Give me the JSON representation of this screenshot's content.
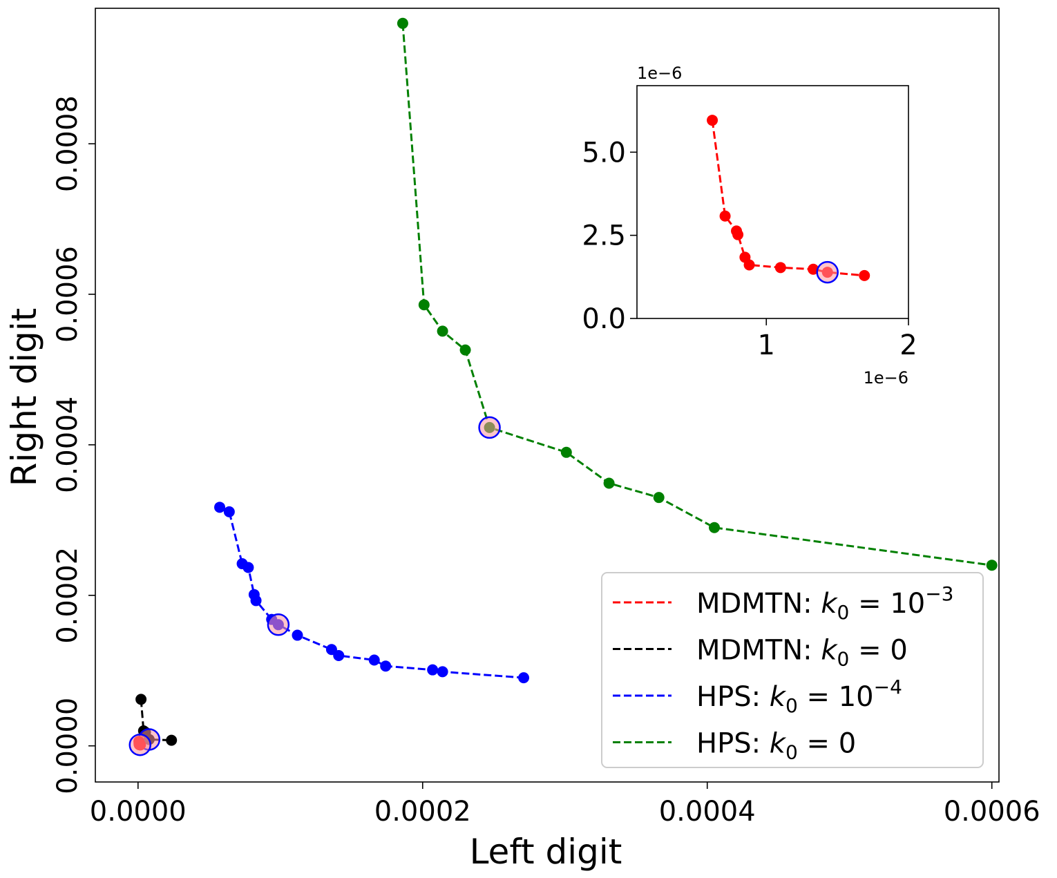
{
  "chart_data": {
    "type": "line",
    "xlabel": "Left digit",
    "ylabel": "Right digit",
    "xlim": [
      -3e-05,
      0.000605
    ],
    "ylim": [
      -4.8e-05,
      0.00098
    ],
    "xticks": [
      {
        "v": 0.0,
        "label": "0.0000"
      },
      {
        "v": 0.0002,
        "label": "0.0002"
      },
      {
        "v": 0.0004,
        "label": "0.0004"
      },
      {
        "v": 0.0006,
        "label": "0.0006"
      }
    ],
    "yticks": [
      {
        "v": 0.0,
        "label": "0.0000"
      },
      {
        "v": 0.0002,
        "label": "0.0002"
      },
      {
        "v": 0.0004,
        "label": "0.0004"
      },
      {
        "v": 0.0006,
        "label": "0.0006"
      },
      {
        "v": 0.0008,
        "label": "0.0008"
      }
    ],
    "series": [
      {
        "name": "HPS: k0 = 0",
        "color": "#008000",
        "x": [
          0.000186,
          0.000201,
          0.000214,
          0.00023,
          0.000247,
          0.000301,
          0.000331,
          0.000366,
          0.000405,
          0.0006
        ],
        "y": [
          0.00096,
          0.000586,
          0.000551,
          0.000526,
          0.000423,
          0.00039,
          0.000349,
          0.00033,
          0.00029,
          0.00024
        ],
        "highlight_index": 4
      },
      {
        "name": "HPS: k0 = 10^-4",
        "color": "#0000ff",
        "x": [
          5.74e-05,
          6.41e-05,
          7.32e-05,
          7.75e-05,
          8.16e-05,
          8.29e-05,
          9.39e-05,
          9.86e-05,
          0.000112,
          0.000136,
          0.000141,
          0.000166,
          0.000174,
          0.000207,
          0.000214,
          0.000271
        ],
        "y": [
          0.000317,
          0.000311,
          0.000242,
          0.000237,
          0.000201,
          0.000193,
          0.000168,
          0.000161,
          0.000147,
          0.000128,
          0.00012,
          0.000114,
          0.000106,
          0.000101,
          9.85e-05,
          9.05e-05
        ],
        "highlight_index": 7
      },
      {
        "name": "MDMTN: k0 = 0",
        "color": "#000000",
        "x": [
          2.1e-06,
          3.9e-06,
          5.2e-06,
          7.8e-06,
          2.35e-05
        ],
        "y": [
          6.18e-05,
          1.99e-05,
          1.81e-05,
          8.5e-06,
          7.4e-06
        ],
        "highlight_index": 3
      },
      {
        "name": "MDMTN: k0 = 10^-3",
        "color": "#ff0000",
        "x": [
          6.2e-07,
          7.1e-07,
          7.9e-07,
          8e-07,
          8.5e-07,
          8.8e-07,
          1.1e-06,
          1.33e-06,
          1.43e-06,
          1.69e-06
        ],
        "y": [
          5.96e-06,
          3.08e-06,
          2.63e-06,
          2.52e-06,
          1.84e-06,
          1.61e-06,
          1.53e-06,
          1.48e-06,
          1.39e-06,
          1.29e-06
        ],
        "highlight_index": 8
      }
    ],
    "legend": {
      "placement": "lower-right",
      "entries": [
        {
          "prefix": "MDMTN:  ",
          "color": "#ff0000",
          "rhs": "10",
          "sup": "−3"
        },
        {
          "prefix": "MDMTN: ",
          "color": "#000000",
          "rhs": "0",
          "sup": ""
        },
        {
          "prefix": "HPS: ",
          "color": "#0000ff",
          "rhs": "10",
          "sup": "−4"
        },
        {
          "prefix": "HPS:  ",
          "color": "#008000",
          "rhs": "0",
          "sup": ""
        }
      ]
    },
    "inset": {
      "placement": "top-right",
      "series_index": 3,
      "scale": 1e-06,
      "x_offset_text": "1e−6",
      "y_offset_text": "1e−6",
      "xlim": [
        0.09,
        2.0
      ],
      "ylim": [
        0.0,
        7.0
      ],
      "xticks": [
        {
          "v": 1,
          "label": "1"
        },
        {
          "v": 2,
          "label": "2"
        }
      ],
      "yticks": [
        {
          "v": 0.0,
          "label": "0.0"
        },
        {
          "v": 2.5,
          "label": "2.5"
        },
        {
          "v": 5.0,
          "label": "5.0"
        }
      ]
    }
  }
}
